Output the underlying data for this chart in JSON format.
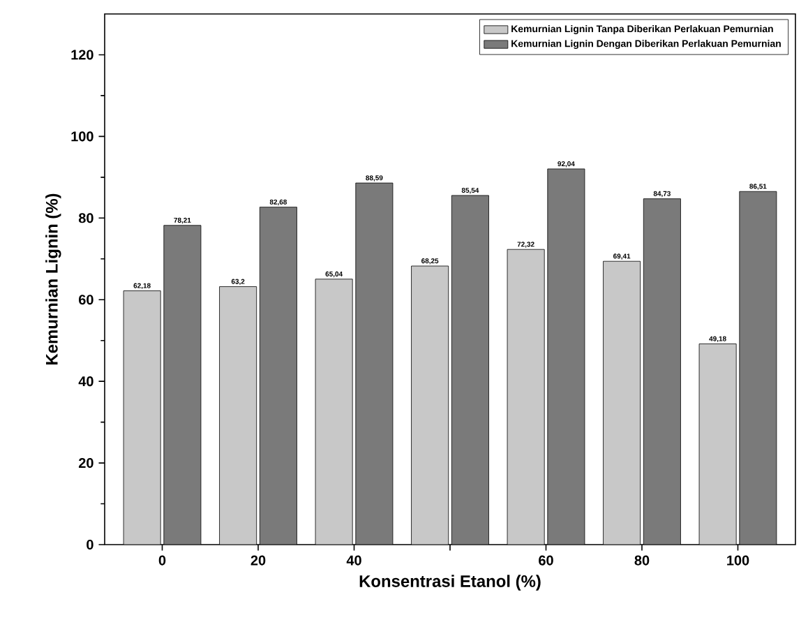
{
  "chart_data": {
    "type": "bar",
    "xlabel": "Konsentrasi Etanol (%)",
    "ylabel": "Kemurnian Lignin (%)",
    "categories": [
      "0",
      "20",
      "40",
      null,
      "60",
      "80",
      "100"
    ],
    "series": [
      {
        "name": "Kemurnian Lignin Tanpa Diberikan Perlakuan Pemurnian",
        "color": "#c8c8c8",
        "values": [
          62.18,
          63.2,
          65.04,
          68.25,
          72.32,
          69.41,
          49.18
        ],
        "value_labels": [
          "62,18",
          "63,2",
          "65,04",
          "68,25",
          "72,32",
          "69,41",
          "49,18"
        ]
      },
      {
        "name": "Kemurnian Lignin Dengan Diberikan Perlakuan Pemurnian",
        "color": "#7a7a7a",
        "values": [
          78.21,
          82.68,
          88.59,
          85.54,
          92.04,
          84.73,
          86.51
        ],
        "value_labels": [
          "78,21",
          "82,68",
          "88,59",
          "85,54",
          "92,04",
          "84,73",
          "86,51"
        ]
      }
    ],
    "ylim": [
      0,
      130
    ],
    "yticks": [
      0,
      20,
      40,
      60,
      80,
      100,
      120
    ],
    "grid": false,
    "legend": "top right"
  }
}
